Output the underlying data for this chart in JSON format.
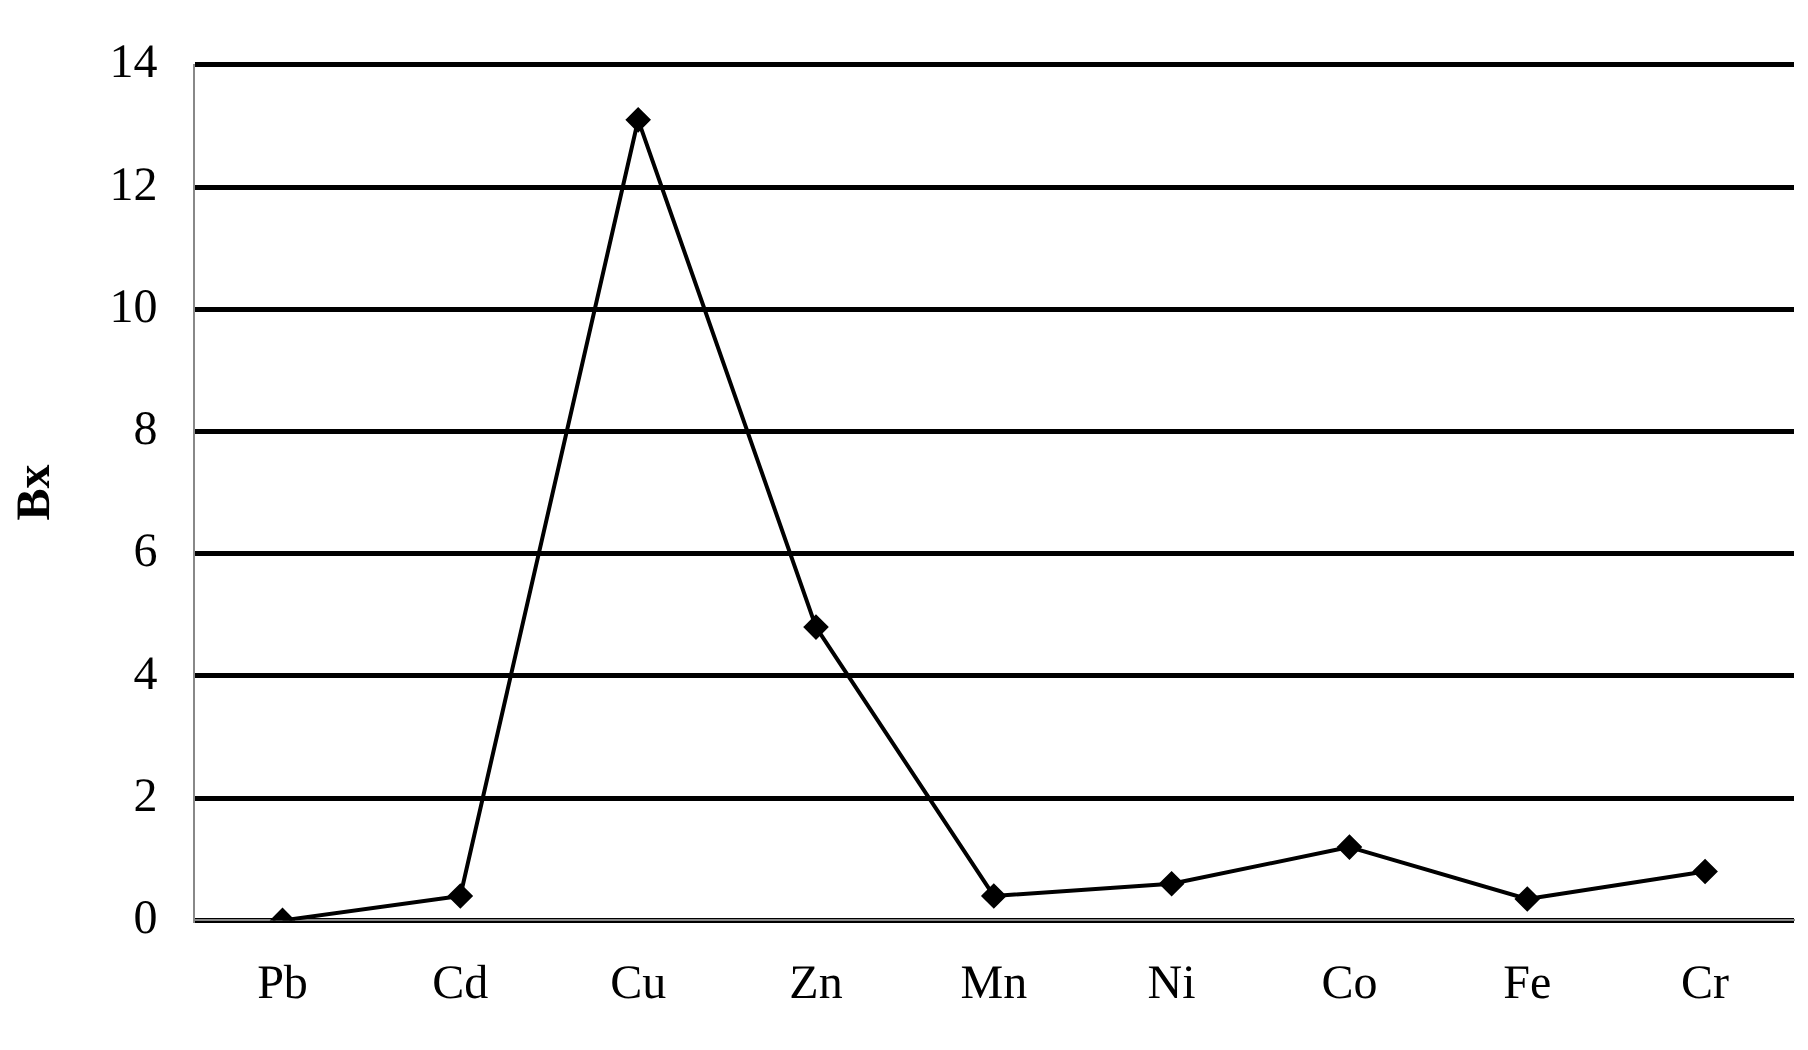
{
  "chart_data": {
    "type": "line",
    "ylabel": "Bx",
    "categories": [
      "Pb",
      "Cd",
      "Cu",
      "Zn",
      "Mn",
      "Ni",
      "Co",
      "Fe",
      "Cr"
    ],
    "series": [
      {
        "color": "#000000",
        "values": [
          0,
          0.4,
          13.1,
          4.8,
          0.4,
          0.6,
          1.2,
          0.35,
          0.8
        ]
      }
    ],
    "ylim": [
      0,
      14
    ],
    "yticks": [
      0,
      2,
      4,
      6,
      8,
      10,
      12,
      14
    ],
    "grid": "y",
    "legend": false,
    "marker": "diamond",
    "line_style": "solid"
  }
}
